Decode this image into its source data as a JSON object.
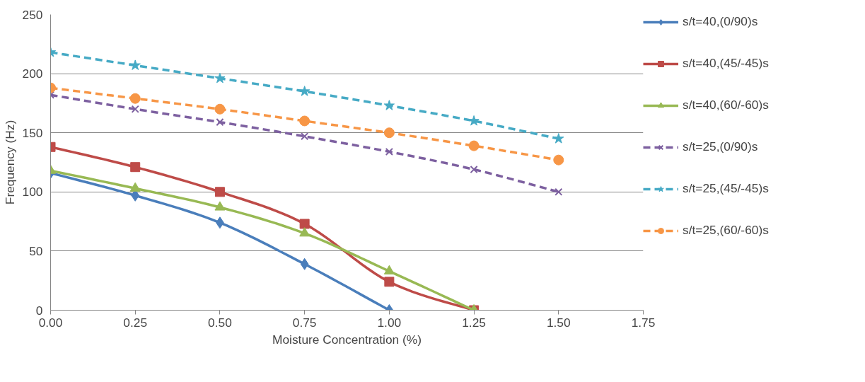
{
  "chart_data": {
    "type": "line",
    "xlabel": "Moisture Concentration (%)",
    "ylabel": "Frequency (Hz)",
    "xlim": [
      0,
      1.75
    ],
    "ylim": [
      0,
      250
    ],
    "xticks": [
      {
        "value": 0,
        "label": "0.00"
      },
      {
        "value": 0.25,
        "label": "0.25"
      },
      {
        "value": 0.5,
        "label": "0.50"
      },
      {
        "value": 0.75,
        "label": "0.75"
      },
      {
        "value": 1.0,
        "label": "1.00"
      },
      {
        "value": 1.25,
        "label": "1.25"
      },
      {
        "value": 1.5,
        "label": "1.50"
      },
      {
        "value": 1.75,
        "label": "1.75"
      }
    ],
    "yticks": [
      0,
      50,
      100,
      150,
      200,
      250
    ],
    "grid": "y",
    "legend": "right",
    "series": [
      {
        "name": "s/t=40,(0/90)s",
        "color": "#4a7ebb",
        "marker": "diamond",
        "line_style": "solid",
        "x": [
          0,
          0.25,
          0.5,
          0.75,
          1.0
        ],
        "values": [
          116,
          97,
          74,
          39,
          0
        ]
      },
      {
        "name": "s/t=40,(45/-45)s",
        "color": "#be4b48",
        "marker": "square",
        "line_style": "solid",
        "x": [
          0,
          0.25,
          0.5,
          0.75,
          1.0,
          1.25
        ],
        "values": [
          138,
          121,
          100,
          73,
          24,
          0
        ]
      },
      {
        "name": "s/t=40,(60/-60)s",
        "color": "#98b954",
        "marker": "triangle",
        "line_style": "solid",
        "x": [
          0,
          0.25,
          0.5,
          0.75,
          1.0,
          1.25
        ],
        "values": [
          118,
          103,
          87,
          65,
          33,
          0
        ]
      },
      {
        "name": "s/t=25,(0/90)s",
        "color": "#7d60a0",
        "marker": "cross",
        "line_style": "dashed",
        "x": [
          0,
          0.25,
          0.5,
          0.75,
          1.0,
          1.25,
          1.5
        ],
        "values": [
          182,
          170,
          159,
          147,
          134,
          119,
          100
        ]
      },
      {
        "name": "s/t=25,(45/-45)s",
        "color": "#46aac5",
        "marker": "star",
        "line_style": "dashed",
        "x": [
          0,
          0.25,
          0.5,
          0.75,
          1.0,
          1.25,
          1.5
        ],
        "values": [
          218,
          207,
          196,
          185,
          173,
          160,
          145
        ]
      },
      {
        "name": "s/t=25,(60/-60)s",
        "color": "#f79646",
        "marker": "circle",
        "line_style": "dashed",
        "x": [
          0,
          0.25,
          0.5,
          0.75,
          1.0,
          1.25,
          1.5
        ],
        "values": [
          188,
          179,
          170,
          160,
          150,
          139,
          127
        ]
      }
    ]
  }
}
